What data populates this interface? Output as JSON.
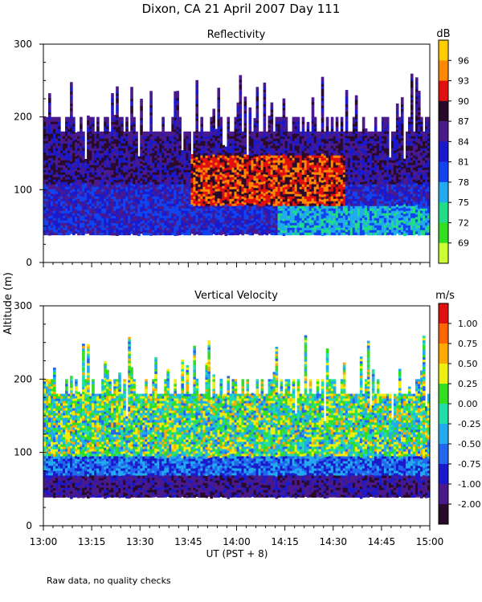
{
  "title": "Dixon, CA 21 April 2007  Day 111",
  "ylabel": "Altitude (m)",
  "xlabel": "UT  (PST + 8)",
  "footnote": "Raw data, no quality checks",
  "x_ticks": [
    "13:00",
    "13:15",
    "13:30",
    "13:45",
    "14:00",
    "14:15",
    "14:30",
    "14:45",
    "15:00"
  ],
  "chart_data": [
    {
      "type": "heatmap",
      "title": "Reflectivity",
      "x_range": [
        "13:00",
        "15:00"
      ],
      "ylim": [
        0,
        300
      ],
      "y_ticks": [
        "0",
        "100",
        "200",
        "300"
      ],
      "data_range_m": [
        40,
        260
      ],
      "colorbar": {
        "unit": "dB",
        "labels": [
          "69",
          "72",
          "75",
          "78",
          "81",
          "84",
          "87",
          "90",
          "93",
          "96"
        ],
        "colors": [
          "#ccff33",
          "#33dd22",
          "#22dd88",
          "#22aaee",
          "#1144ee",
          "#1a1acc",
          "#4a1a8c",
          "#2a0a2a",
          "#e01010",
          "#ff8800",
          "#ffcc00"
        ]
      },
      "description_values": {
        "background_mean_dB": 81,
        "enhanced_layer_dB": 90,
        "enhanced_layer_time": [
          "13:45",
          "14:35"
        ],
        "enhanced_layer_altitude_m": [
          90,
          140
        ],
        "low_level_late_dB": 75
      }
    },
    {
      "type": "heatmap",
      "title": "Vertical Velocity",
      "x_range": [
        "13:00",
        "15:00"
      ],
      "ylim": [
        0,
        300
      ],
      "y_ticks": [
        "0",
        "100",
        "200",
        "300"
      ],
      "data_range_m": [
        40,
        260
      ],
      "colorbar": {
        "unit": "m/s",
        "labels": [
          "1.00",
          "0.75",
          "0.50",
          "0.25",
          "0.00",
          "-0.25",
          "-0.50",
          "-0.75",
          "-1.00",
          "-2.00"
        ],
        "colors": [
          "#e01010",
          "#ff6600",
          "#ffaa00",
          "#eeee11",
          "#33dd22",
          "#22ddaa",
          "#22aaee",
          "#2266ee",
          "#1a1acc",
          "#4a1a8c",
          "#2a0a2a"
        ]
      },
      "description_values": {
        "low_level_band_m_s": -1.5,
        "low_level_band_altitude_m": [
          40,
          70
        ],
        "mid_level_range_m_s": [
          -0.5,
          0.5
        ]
      }
    }
  ]
}
